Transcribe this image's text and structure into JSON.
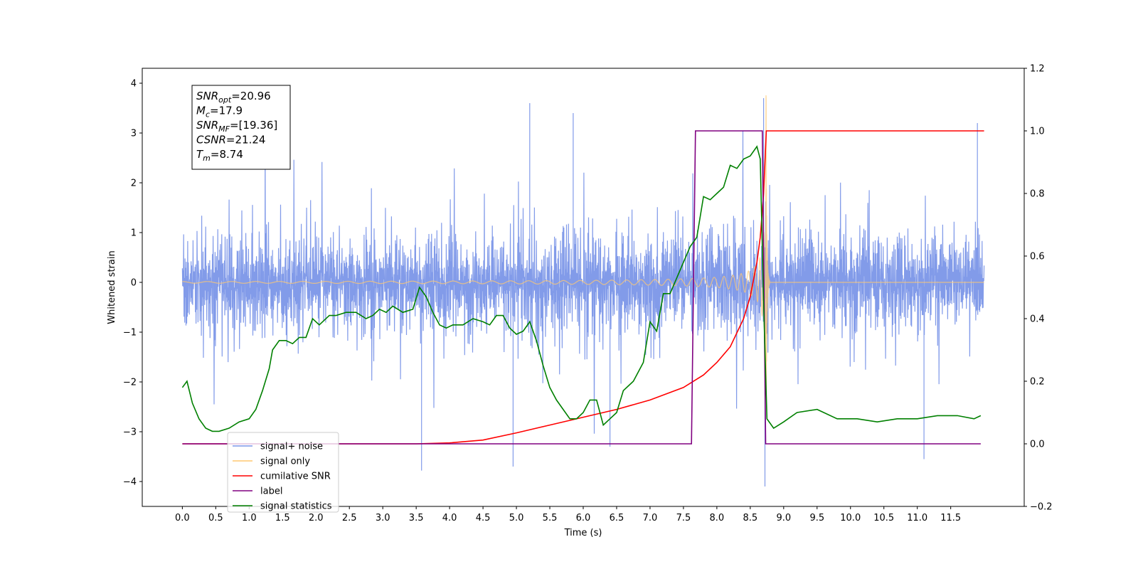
{
  "chart_data": {
    "type": "line",
    "xlabel": "Time (s)",
    "ylabel_left": "Whitened strain",
    "xlim": [
      -0.6,
      12.6
    ],
    "ylim_left": [
      -4.5,
      4.3
    ],
    "ylim_right": [
      -0.2,
      1.2
    ],
    "x_ticks": [
      0.0,
      0.5,
      1.0,
      1.5,
      2.0,
      2.5,
      3.0,
      3.5,
      4.0,
      4.5,
      5.0,
      5.5,
      6.0,
      6.5,
      7.0,
      7.5,
      8.0,
      8.5,
      9.0,
      9.5,
      10.0,
      10.5,
      11.0,
      11.5
    ],
    "x_tick_labels": [
      "0.0",
      "0.5",
      "1.0",
      "1.5",
      "2.0",
      "2.5",
      "3.0",
      "3.5",
      "4.0",
      "4.5",
      "5.0",
      "5.5",
      "6.0",
      "6.5",
      "7.0",
      "7.5",
      "8.0",
      "8.5",
      "9.0",
      "9.5",
      "10.0",
      "10.5",
      "11.0",
      "11.5"
    ],
    "y_ticks_left": [
      4,
      3,
      2,
      1,
      0,
      -1,
      -2,
      -3,
      -4
    ],
    "y_tick_labels_left": [
      "4",
      "3",
      "2",
      "1",
      "0",
      "−1",
      "−2",
      "−3",
      "−4"
    ],
    "y_ticks_right": [
      1.2,
      1.0,
      0.8,
      0.6,
      0.4,
      0.2,
      0.0,
      -0.2
    ],
    "y_tick_labels_right": [
      "1.2",
      "1.0",
      "0.8",
      "0.6",
      "0.4",
      "0.2",
      "0.0",
      "−0.2"
    ],
    "legend_position": "lower-left",
    "legend": [
      {
        "label": "signal+ noise",
        "color": "#7b96e8"
      },
      {
        "label": "signal only",
        "color": "#ffc870"
      },
      {
        "label": "cumilative SNR",
        "color": "#ff0000"
      },
      {
        "label": "label",
        "color": "#800080"
      },
      {
        "label": "signal statistics",
        "color": "#008000"
      }
    ],
    "annotation": {
      "lines": [
        {
          "base": "SNR",
          "sub": "opt",
          "value": "=20.96"
        },
        {
          "base": "M",
          "sub": "c",
          "value": "=17.9"
        },
        {
          "base": "SNR",
          "sub": "MF",
          "value": "=[19.36]"
        },
        {
          "base": "CSNR",
          "sub": "",
          "value": "=21.24"
        },
        {
          "base": "T",
          "sub": "m",
          "value": "=8.74"
        }
      ]
    },
    "series": [
      {
        "name": "signal+ noise",
        "axis": "left",
        "color": "#7b96e8",
        "kind": "noise",
        "x_range": [
          0.0,
          12.0
        ],
        "envelope_typical": 1.6,
        "spikes": [
          [
            3.58,
            -3.78
          ],
          [
            4.95,
            -3.7
          ],
          [
            5.2,
            3.6
          ],
          [
            5.85,
            3.4
          ],
          [
            6.4,
            -3.3
          ],
          [
            8.7,
            3.7
          ],
          [
            8.72,
            -4.1
          ],
          [
            11.1,
            -3.55
          ],
          [
            11.9,
            3.2
          ]
        ]
      },
      {
        "name": "signal only",
        "axis": "left",
        "color": "#ffc870",
        "kind": "chirp",
        "merger_time": 8.74,
        "peak_amplitude": 3.9,
        "x_range": [
          0.0,
          12.0
        ]
      },
      {
        "name": "cumilative SNR",
        "axis": "right",
        "color": "#ff0000",
        "x": [
          0.0,
          3.5,
          4.0,
          4.5,
          5.0,
          5.5,
          6.0,
          6.5,
          7.0,
          7.5,
          7.8,
          8.0,
          8.2,
          8.4,
          8.5,
          8.6,
          8.65,
          8.7,
          8.74,
          8.75,
          12.0
        ],
        "y": [
          0.0,
          0.0,
          0.003,
          0.012,
          0.035,
          0.06,
          0.085,
          0.11,
          0.14,
          0.18,
          0.22,
          0.26,
          0.31,
          0.4,
          0.47,
          0.58,
          0.66,
          0.8,
          1.0,
          1.0,
          1.0
        ]
      },
      {
        "name": "label",
        "axis": "right",
        "color": "#800080",
        "x": [
          0.0,
          7.62,
          7.68,
          8.68,
          8.73,
          11.95
        ],
        "y": [
          0.0,
          0.0,
          1.0,
          1.0,
          0.0,
          0.0
        ]
      },
      {
        "name": "signal statistics",
        "axis": "right",
        "color": "#008000",
        "x": [
          0.0,
          0.07,
          0.15,
          0.25,
          0.35,
          0.45,
          0.55,
          0.7,
          0.85,
          1.0,
          1.1,
          1.2,
          1.3,
          1.35,
          1.45,
          1.55,
          1.65,
          1.75,
          1.85,
          1.95,
          2.05,
          2.2,
          2.3,
          2.45,
          2.6,
          2.75,
          2.85,
          2.95,
          3.05,
          3.15,
          3.3,
          3.45,
          3.55,
          3.65,
          3.75,
          3.85,
          3.95,
          4.05,
          4.2,
          4.35,
          4.5,
          4.6,
          4.7,
          4.8,
          4.9,
          5.0,
          5.1,
          5.2,
          5.3,
          5.4,
          5.5,
          5.6,
          5.7,
          5.8,
          5.9,
          6.0,
          6.1,
          6.2,
          6.3,
          6.4,
          6.5,
          6.6,
          6.75,
          6.9,
          7.0,
          7.1,
          7.2,
          7.3,
          7.4,
          7.5,
          7.6,
          7.7,
          7.8,
          7.9,
          8.0,
          8.1,
          8.2,
          8.3,
          8.4,
          8.5,
          8.6,
          8.65,
          8.7,
          8.75,
          8.85,
          9.0,
          9.2,
          9.5,
          9.8,
          10.1,
          10.4,
          10.7,
          11.0,
          11.3,
          11.6,
          11.85,
          11.95
        ],
        "y": [
          0.18,
          0.2,
          0.13,
          0.08,
          0.05,
          0.04,
          0.04,
          0.05,
          0.07,
          0.08,
          0.11,
          0.17,
          0.24,
          0.3,
          0.33,
          0.33,
          0.32,
          0.34,
          0.34,
          0.4,
          0.38,
          0.41,
          0.41,
          0.42,
          0.42,
          0.4,
          0.41,
          0.43,
          0.42,
          0.44,
          0.42,
          0.43,
          0.5,
          0.47,
          0.42,
          0.38,
          0.37,
          0.38,
          0.38,
          0.4,
          0.39,
          0.38,
          0.41,
          0.41,
          0.37,
          0.35,
          0.36,
          0.39,
          0.33,
          0.25,
          0.18,
          0.14,
          0.11,
          0.08,
          0.08,
          0.1,
          0.14,
          0.14,
          0.06,
          0.08,
          0.1,
          0.17,
          0.2,
          0.26,
          0.39,
          0.36,
          0.48,
          0.48,
          0.53,
          0.58,
          0.63,
          0.66,
          0.79,
          0.78,
          0.8,
          0.82,
          0.89,
          0.88,
          0.91,
          0.92,
          0.95,
          0.91,
          0.45,
          0.08,
          0.05,
          0.07,
          0.1,
          0.11,
          0.08,
          0.08,
          0.07,
          0.08,
          0.08,
          0.09,
          0.09,
          0.08,
          0.09
        ]
      }
    ]
  }
}
